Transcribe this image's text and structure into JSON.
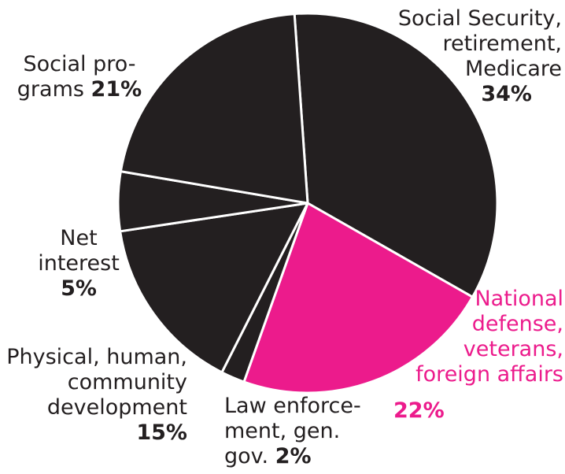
{
  "chart_data": {
    "type": "pie",
    "title": "",
    "colors": {
      "default": "#231f20",
      "highlight": "#ec1b8c",
      "divider": "#ffffff"
    },
    "slices": [
      {
        "lines": [
          "Social Security,",
          "retirement,",
          "Medicare"
        ],
        "percent_label": "34%",
        "value": 34,
        "color": "#231f20"
      },
      {
        "lines": [
          "National",
          "defense,",
          "veterans,",
          "foreign affairs"
        ],
        "percent_label": "22%",
        "value": 22,
        "color": "#ec1b8c"
      },
      {
        "lines": [
          "Law enforce-",
          "ment, gen.",
          "gov."
        ],
        "percent_label": "2%",
        "value": 2,
        "color": "#231f20"
      },
      {
        "lines": [
          "Physical, human,",
          "community",
          "development"
        ],
        "percent_label": "15%",
        "value": 15,
        "color": "#231f20"
      },
      {
        "lines": [
          "Net",
          "interest"
        ],
        "percent_label": "5%",
        "value": 5,
        "color": "#231f20"
      },
      {
        "lines": [
          "Social pro-",
          "grams"
        ],
        "percent_label": "21%",
        "value": 21,
        "color": "#231f20"
      }
    ]
  }
}
